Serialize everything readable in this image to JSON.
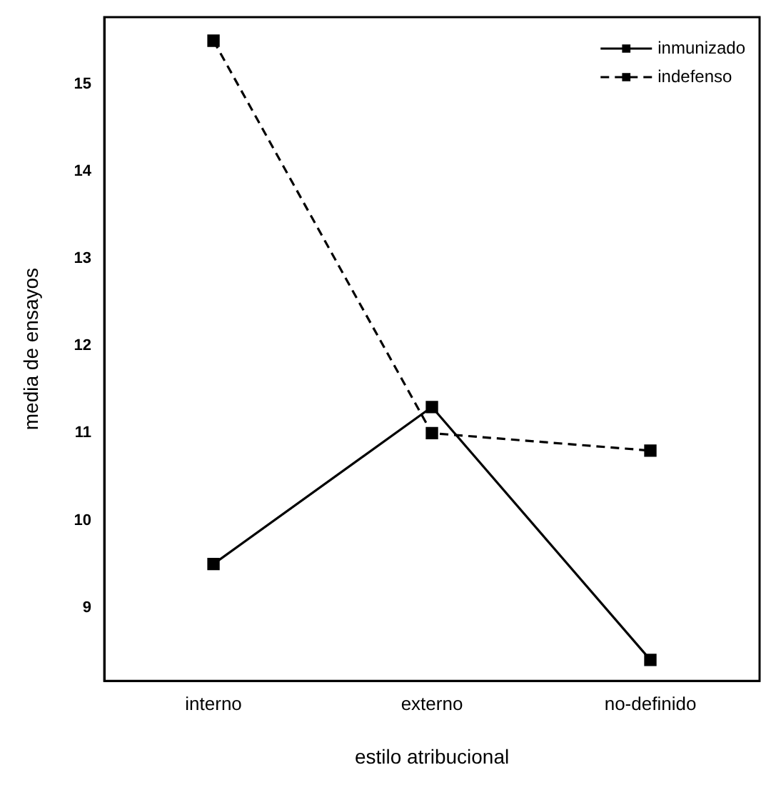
{
  "chart_data": {
    "type": "line",
    "xlabel": "estilo atribucional",
    "ylabel": "media de ensayos",
    "categories": [
      "interno",
      "externo",
      "no-definido"
    ],
    "series": [
      {
        "name": "inmunizado",
        "color": "#000000",
        "values": [
          9.5,
          11.3,
          8.4
        ],
        "line_style": "solid"
      },
      {
        "name": "indefenso",
        "color": "#000000",
        "values": [
          15.5,
          11.0,
          10.8
        ],
        "line_style": "dashed"
      }
    ],
    "ylim": [
      8.16,
      15.77
    ],
    "yticks": [
      9,
      10,
      11,
      12,
      13,
      14,
      15
    ],
    "grid": false,
    "legend": "top right",
    "marker": "square"
  }
}
